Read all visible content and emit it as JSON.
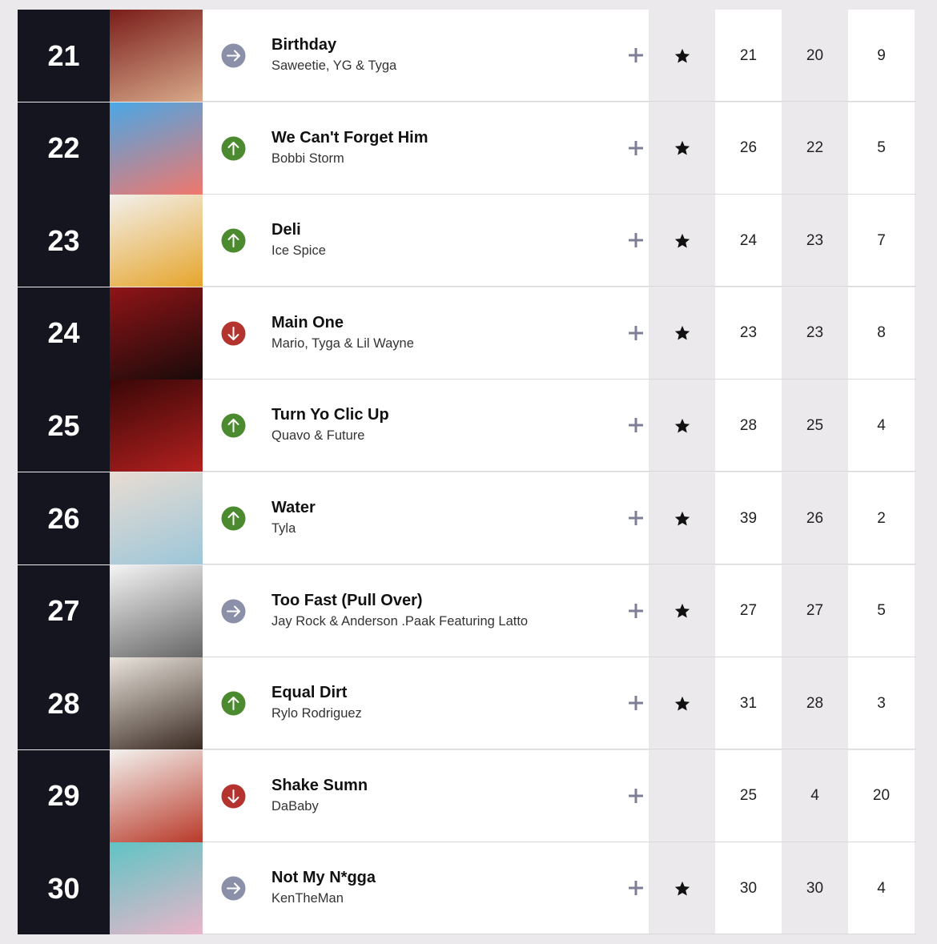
{
  "chart": {
    "columns": [
      "rank",
      "title",
      "artist",
      "last_week",
      "peak",
      "weeks"
    ],
    "rows": [
      {
        "rank": 21,
        "title": "Birthday",
        "artist": "Saweetie, YG & Tyga",
        "award": true,
        "last_week": 21,
        "peak": 20,
        "weeks": 9
      },
      {
        "rank": 22,
        "title": "We Can't Forget Him",
        "artist": "Bobbi Storm",
        "award": true,
        "last_week": 26,
        "peak": 22,
        "weeks": 5
      },
      {
        "rank": 23,
        "title": "Deli",
        "artist": "Ice Spice",
        "award": true,
        "last_week": 24,
        "peak": 23,
        "weeks": 7
      },
      {
        "rank": 24,
        "title": "Main One",
        "artist": "Mario, Tyga & Lil Wayne",
        "award": true,
        "last_week": 23,
        "peak": 23,
        "weeks": 8
      },
      {
        "rank": 25,
        "title": "Turn Yo Clic Up",
        "artist": "Quavo & Future",
        "award": true,
        "last_week": 28,
        "peak": 25,
        "weeks": 4
      },
      {
        "rank": 26,
        "title": "Water",
        "artist": "Tyla",
        "award": true,
        "last_week": 39,
        "peak": 26,
        "weeks": 2
      },
      {
        "rank": 27,
        "title": "Too Fast (Pull Over)",
        "artist": "Jay Rock & Anderson .Paak Featuring Latto",
        "award": true,
        "last_week": 27,
        "peak": 27,
        "weeks": 5
      },
      {
        "rank": 28,
        "title": "Equal Dirt",
        "artist": "Rylo Rodriguez",
        "award": true,
        "last_week": 31,
        "peak": 28,
        "weeks": 3
      },
      {
        "rank": 29,
        "title": "Shake Sumn",
        "artist": "DaBaby",
        "award": false,
        "last_week": 25,
        "peak": 4,
        "weeks": 20
      },
      {
        "rank": 30,
        "title": "Not My N*gga",
        "artist": "KenTheMan",
        "award": true,
        "last_week": 30,
        "peak": 30,
        "weeks": 4
      }
    ]
  }
}
